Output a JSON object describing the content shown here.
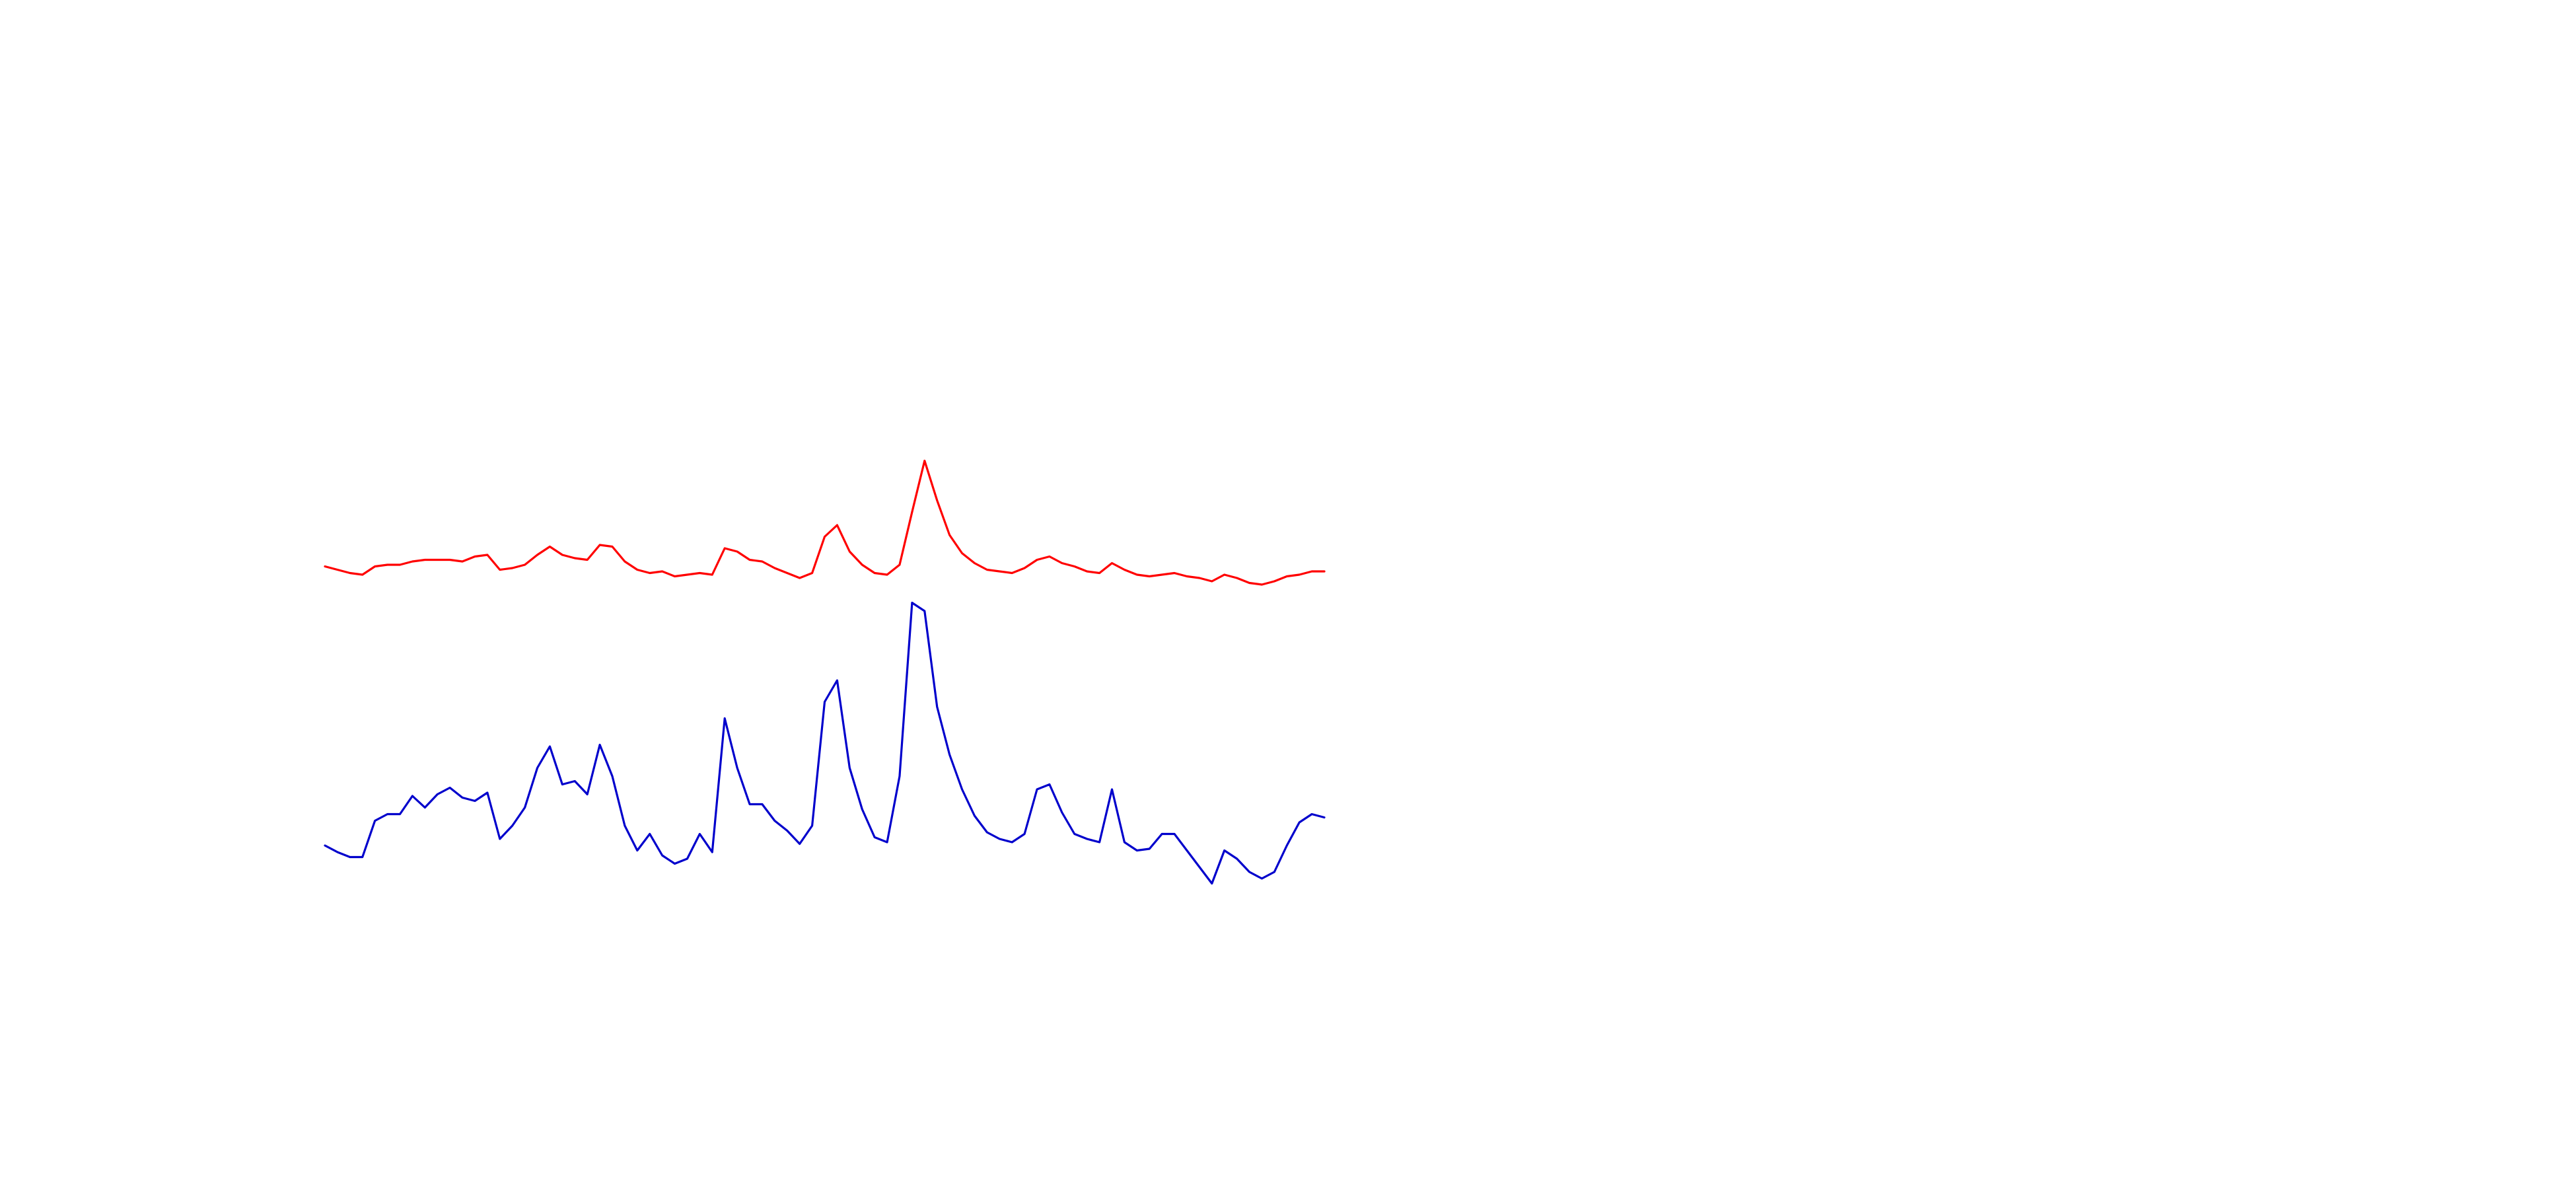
{
  "chart_data": {
    "type": "line",
    "x": [
      0,
      1,
      2,
      3,
      4,
      5,
      6,
      7,
      8,
      9,
      10,
      11,
      12,
      13,
      14,
      15,
      16,
      17,
      18,
      19,
      20,
      21,
      22,
      23,
      24,
      25,
      26,
      27,
      28,
      29,
      30,
      31,
      32,
      33,
      34,
      35,
      36,
      37,
      38,
      39,
      40,
      41,
      42,
      43,
      44,
      45,
      46,
      47,
      48,
      49,
      50,
      51,
      52,
      53,
      54,
      55,
      56,
      57,
      58,
      59,
      60,
      61,
      62,
      63,
      64,
      65,
      66,
      67,
      68,
      69,
      70,
      71,
      72,
      73,
      74,
      75,
      76,
      77,
      78,
      79,
      80
    ],
    "xlim": [
      0,
      80
    ],
    "ylim": [
      0,
      300
    ],
    "series": [
      {
        "color": "#ff0000",
        "values": [
          217,
          215,
          213,
          212,
          217,
          218,
          218,
          220,
          221,
          221,
          221,
          220,
          223,
          224,
          215,
          216,
          218,
          224,
          229,
          224,
          222,
          221,
          230,
          229,
          220,
          215,
          213,
          214,
          211,
          212,
          213,
          212,
          228,
          226,
          221,
          220,
          216,
          213,
          210,
          213,
          235,
          242,
          226,
          218,
          213,
          212,
          218,
          250,
          281,
          257,
          236,
          225,
          219,
          215,
          214,
          213,
          216,
          221,
          223,
          219,
          217,
          214,
          213,
          219,
          215,
          212,
          211,
          212,
          213,
          211,
          210,
          208,
          212,
          210,
          207,
          206,
          208,
          211,
          212,
          214,
          214
        ]
      },
      {
        "color": "#0000cc",
        "values": [
          48,
          44,
          41,
          41,
          63,
          67,
          67,
          78,
          71,
          79,
          83,
          77,
          75,
          80,
          52,
          60,
          71,
          95,
          108,
          85,
          87,
          79,
          109,
          90,
          60,
          45,
          55,
          42,
          37,
          40,
          55,
          44,
          125,
          95,
          73,
          73,
          63,
          57,
          49,
          60,
          135,
          148,
          95,
          70,
          53,
          50,
          90,
          195,
          190,
          132,
          103,
          82,
          66,
          56,
          52,
          50,
          55,
          82,
          85,
          68,
          55,
          52,
          50,
          82,
          50,
          45,
          46,
          55,
          55,
          45,
          35,
          25,
          45,
          40,
          32,
          28,
          32,
          48,
          62,
          67,
          65
        ]
      }
    ]
  }
}
